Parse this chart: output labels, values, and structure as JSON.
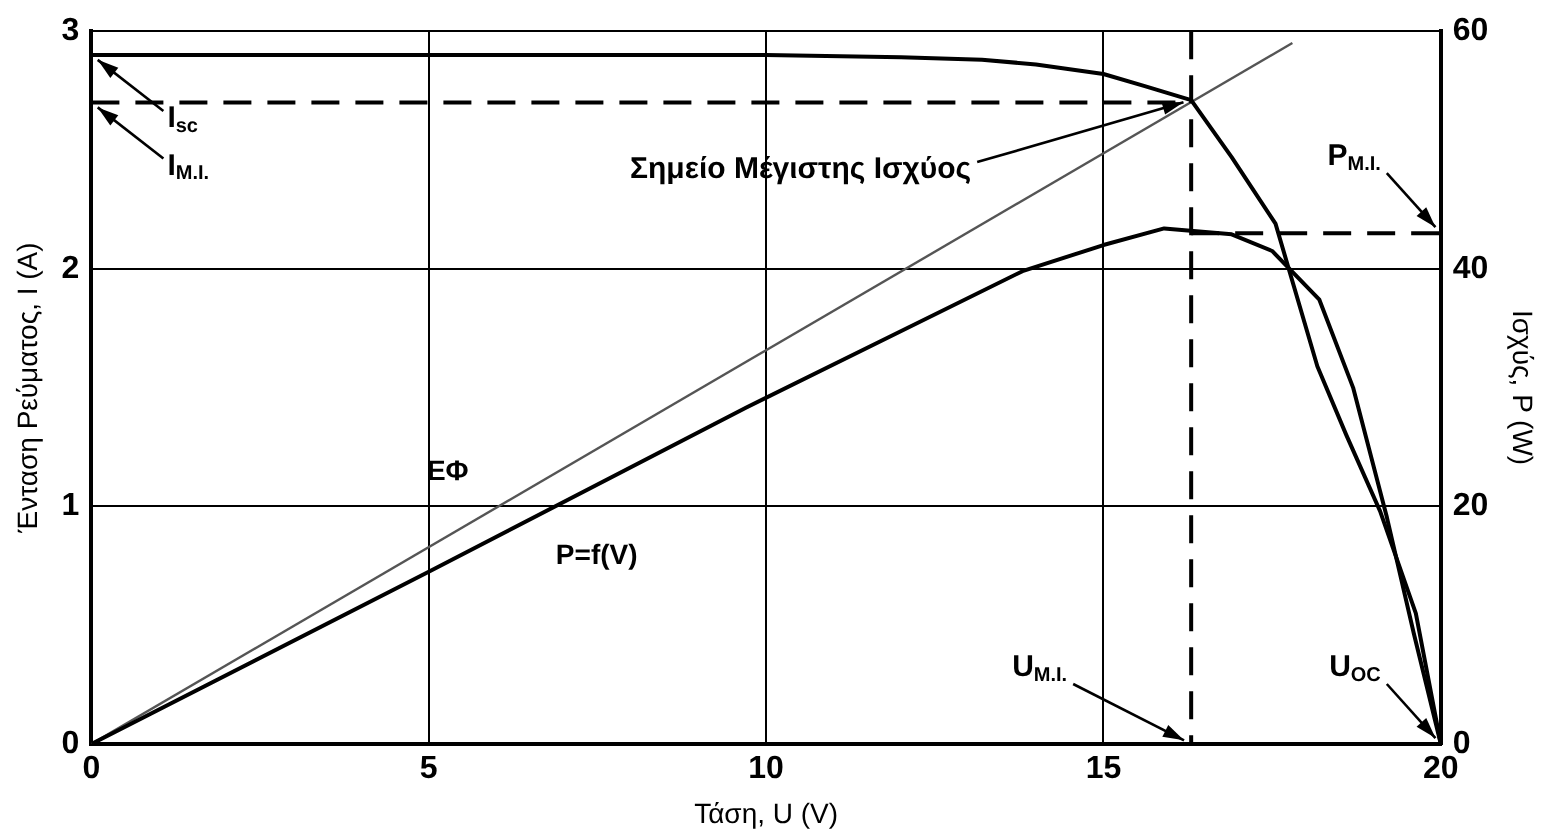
{
  "chart_data": {
    "type": "line",
    "xlabel": "Τάση, U (V)",
    "ylabel": "Ένταση Ρεύματος, I (A)",
    "y2label": "Ισχύς, P (W)",
    "xlim": [
      0,
      20
    ],
    "xticks": [
      0,
      5,
      10,
      15,
      20
    ],
    "ylim": [
      0,
      3
    ],
    "yticks": [
      0,
      1,
      2,
      3
    ],
    "y2lim": [
      0,
      60
    ],
    "y2ticks": [
      0,
      20,
      40,
      60
    ],
    "grid": true,
    "legend": false,
    "marker": "none",
    "series": [
      {
        "color": "#000000",
        "x": [
          0,
          5,
          10,
          12,
          13.2,
          14,
          15,
          15.6,
          16.3,
          16.9,
          17.55,
          18.17,
          18.6,
          19.1,
          19.63,
          20
        ],
        "values": [
          2.9,
          2.9,
          2.9,
          2.89,
          2.88,
          2.86,
          2.82,
          2.77,
          2.71,
          2.47,
          2.19,
          1.59,
          1.3,
          0.98,
          0.55,
          0
        ]
      },
      {
        "name": "P=f(V)",
        "color": "#000000",
        "axis": "y2",
        "x": [
          0,
          5,
          9.7,
          13.8,
          15,
          15.9,
          16.9,
          17.5,
          18.2,
          18.7,
          19.2,
          19.6,
          20
        ],
        "values": [
          0,
          14.5,
          28.3,
          39.8,
          42,
          43.4,
          42.9,
          41.5,
          37.4,
          30,
          19.1,
          9.3,
          0
        ]
      },
      {
        "name": "EΦ",
        "color": "#555555",
        "x": [
          0,
          17.8
        ],
        "values": [
          0,
          2.95
        ]
      }
    ],
    "ref_lines": [
      {
        "axis": "y",
        "value": 2.7,
        "label": "I$_{M.I.}$",
        "line_style": "dashed"
      },
      {
        "axis": "x",
        "value": 16.3,
        "label": "U$_{M.I.}$",
        "line_style": "dashed"
      },
      {
        "axis": "y2",
        "value": 43,
        "label": "P$_{M.I.}$",
        "line_style": "dashed"
      }
    ],
    "annotations": [
      {
        "text": "I$_{sc}$",
        "x": 0,
        "y": 2.9
      },
      {
        "text": "U$_{OC}$",
        "x": 20,
        "y": 0
      },
      {
        "text": "Σημείο Μέγιστης Ισχύος",
        "x": 16.3,
        "y": 2.71
      }
    ]
  }
}
